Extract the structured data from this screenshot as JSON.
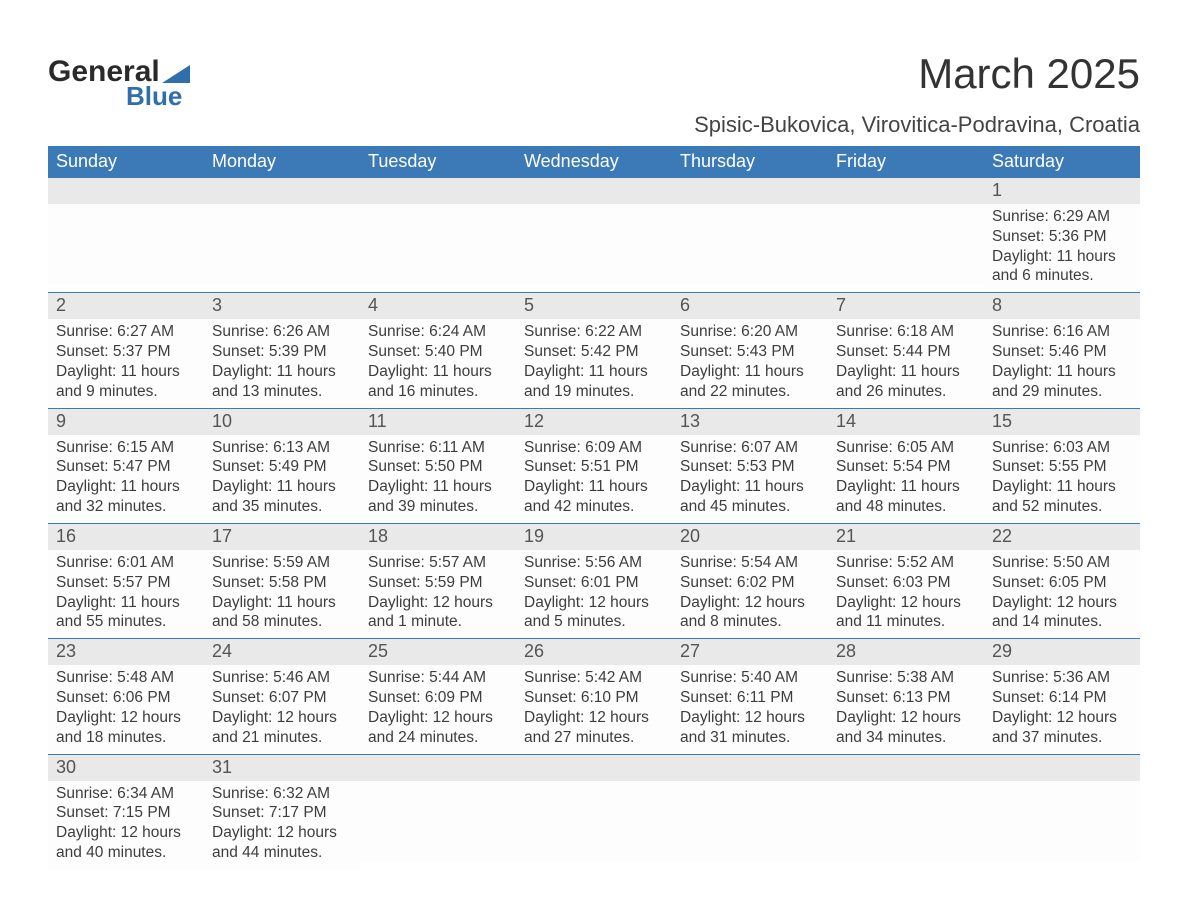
{
  "logo": {
    "text_general": "General",
    "text_blue": "Blue"
  },
  "title": "March 2025",
  "location": "Spisic-Bukovica, Virovitica-Podravina, Croatia",
  "colors": {
    "header_bg": "#3b79b7",
    "header_text": "#ffffff",
    "band_bg": "#e9e9e9",
    "body_bg": "#fdfdfd",
    "text": "#3a3a3a",
    "rule": "#3b79b7"
  },
  "day_names": [
    "Sunday",
    "Monday",
    "Tuesday",
    "Wednesday",
    "Thursday",
    "Friday",
    "Saturday"
  ],
  "weeks": [
    [
      null,
      null,
      null,
      null,
      null,
      null,
      {
        "n": "1",
        "sr": "Sunrise: 6:29 AM",
        "ss": "Sunset: 5:36 PM",
        "d1": "Daylight: 11 hours",
        "d2": "and 6 minutes."
      }
    ],
    [
      {
        "n": "2",
        "sr": "Sunrise: 6:27 AM",
        "ss": "Sunset: 5:37 PM",
        "d1": "Daylight: 11 hours",
        "d2": "and 9 minutes."
      },
      {
        "n": "3",
        "sr": "Sunrise: 6:26 AM",
        "ss": "Sunset: 5:39 PM",
        "d1": "Daylight: 11 hours",
        "d2": "and 13 minutes."
      },
      {
        "n": "4",
        "sr": "Sunrise: 6:24 AM",
        "ss": "Sunset: 5:40 PM",
        "d1": "Daylight: 11 hours",
        "d2": "and 16 minutes."
      },
      {
        "n": "5",
        "sr": "Sunrise: 6:22 AM",
        "ss": "Sunset: 5:42 PM",
        "d1": "Daylight: 11 hours",
        "d2": "and 19 minutes."
      },
      {
        "n": "6",
        "sr": "Sunrise: 6:20 AM",
        "ss": "Sunset: 5:43 PM",
        "d1": "Daylight: 11 hours",
        "d2": "and 22 minutes."
      },
      {
        "n": "7",
        "sr": "Sunrise: 6:18 AM",
        "ss": "Sunset: 5:44 PM",
        "d1": "Daylight: 11 hours",
        "d2": "and 26 minutes."
      },
      {
        "n": "8",
        "sr": "Sunrise: 6:16 AM",
        "ss": "Sunset: 5:46 PM",
        "d1": "Daylight: 11 hours",
        "d2": "and 29 minutes."
      }
    ],
    [
      {
        "n": "9",
        "sr": "Sunrise: 6:15 AM",
        "ss": "Sunset: 5:47 PM",
        "d1": "Daylight: 11 hours",
        "d2": "and 32 minutes."
      },
      {
        "n": "10",
        "sr": "Sunrise: 6:13 AM",
        "ss": "Sunset: 5:49 PM",
        "d1": "Daylight: 11 hours",
        "d2": "and 35 minutes."
      },
      {
        "n": "11",
        "sr": "Sunrise: 6:11 AM",
        "ss": "Sunset: 5:50 PM",
        "d1": "Daylight: 11 hours",
        "d2": "and 39 minutes."
      },
      {
        "n": "12",
        "sr": "Sunrise: 6:09 AM",
        "ss": "Sunset: 5:51 PM",
        "d1": "Daylight: 11 hours",
        "d2": "and 42 minutes."
      },
      {
        "n": "13",
        "sr": "Sunrise: 6:07 AM",
        "ss": "Sunset: 5:53 PM",
        "d1": "Daylight: 11 hours",
        "d2": "and 45 minutes."
      },
      {
        "n": "14",
        "sr": "Sunrise: 6:05 AM",
        "ss": "Sunset: 5:54 PM",
        "d1": "Daylight: 11 hours",
        "d2": "and 48 minutes."
      },
      {
        "n": "15",
        "sr": "Sunrise: 6:03 AM",
        "ss": "Sunset: 5:55 PM",
        "d1": "Daylight: 11 hours",
        "d2": "and 52 minutes."
      }
    ],
    [
      {
        "n": "16",
        "sr": "Sunrise: 6:01 AM",
        "ss": "Sunset: 5:57 PM",
        "d1": "Daylight: 11 hours",
        "d2": "and 55 minutes."
      },
      {
        "n": "17",
        "sr": "Sunrise: 5:59 AM",
        "ss": "Sunset: 5:58 PM",
        "d1": "Daylight: 11 hours",
        "d2": "and 58 minutes."
      },
      {
        "n": "18",
        "sr": "Sunrise: 5:57 AM",
        "ss": "Sunset: 5:59 PM",
        "d1": "Daylight: 12 hours",
        "d2": "and 1 minute."
      },
      {
        "n": "19",
        "sr": "Sunrise: 5:56 AM",
        "ss": "Sunset: 6:01 PM",
        "d1": "Daylight: 12 hours",
        "d2": "and 5 minutes."
      },
      {
        "n": "20",
        "sr": "Sunrise: 5:54 AM",
        "ss": "Sunset: 6:02 PM",
        "d1": "Daylight: 12 hours",
        "d2": "and 8 minutes."
      },
      {
        "n": "21",
        "sr": "Sunrise: 5:52 AM",
        "ss": "Sunset: 6:03 PM",
        "d1": "Daylight: 12 hours",
        "d2": "and 11 minutes."
      },
      {
        "n": "22",
        "sr": "Sunrise: 5:50 AM",
        "ss": "Sunset: 6:05 PM",
        "d1": "Daylight: 12 hours",
        "d2": "and 14 minutes."
      }
    ],
    [
      {
        "n": "23",
        "sr": "Sunrise: 5:48 AM",
        "ss": "Sunset: 6:06 PM",
        "d1": "Daylight: 12 hours",
        "d2": "and 18 minutes."
      },
      {
        "n": "24",
        "sr": "Sunrise: 5:46 AM",
        "ss": "Sunset: 6:07 PM",
        "d1": "Daylight: 12 hours",
        "d2": "and 21 minutes."
      },
      {
        "n": "25",
        "sr": "Sunrise: 5:44 AM",
        "ss": "Sunset: 6:09 PM",
        "d1": "Daylight: 12 hours",
        "d2": "and 24 minutes."
      },
      {
        "n": "26",
        "sr": "Sunrise: 5:42 AM",
        "ss": "Sunset: 6:10 PM",
        "d1": "Daylight: 12 hours",
        "d2": "and 27 minutes."
      },
      {
        "n": "27",
        "sr": "Sunrise: 5:40 AM",
        "ss": "Sunset: 6:11 PM",
        "d1": "Daylight: 12 hours",
        "d2": "and 31 minutes."
      },
      {
        "n": "28",
        "sr": "Sunrise: 5:38 AM",
        "ss": "Sunset: 6:13 PM",
        "d1": "Daylight: 12 hours",
        "d2": "and 34 minutes."
      },
      {
        "n": "29",
        "sr": "Sunrise: 5:36 AM",
        "ss": "Sunset: 6:14 PM",
        "d1": "Daylight: 12 hours",
        "d2": "and 37 minutes."
      }
    ],
    [
      {
        "n": "30",
        "sr": "Sunrise: 6:34 AM",
        "ss": "Sunset: 7:15 PM",
        "d1": "Daylight: 12 hours",
        "d2": "and 40 minutes."
      },
      {
        "n": "31",
        "sr": "Sunrise: 6:32 AM",
        "ss": "Sunset: 7:17 PM",
        "d1": "Daylight: 12 hours",
        "d2": "and 44 minutes."
      },
      null,
      null,
      null,
      null,
      null
    ]
  ]
}
